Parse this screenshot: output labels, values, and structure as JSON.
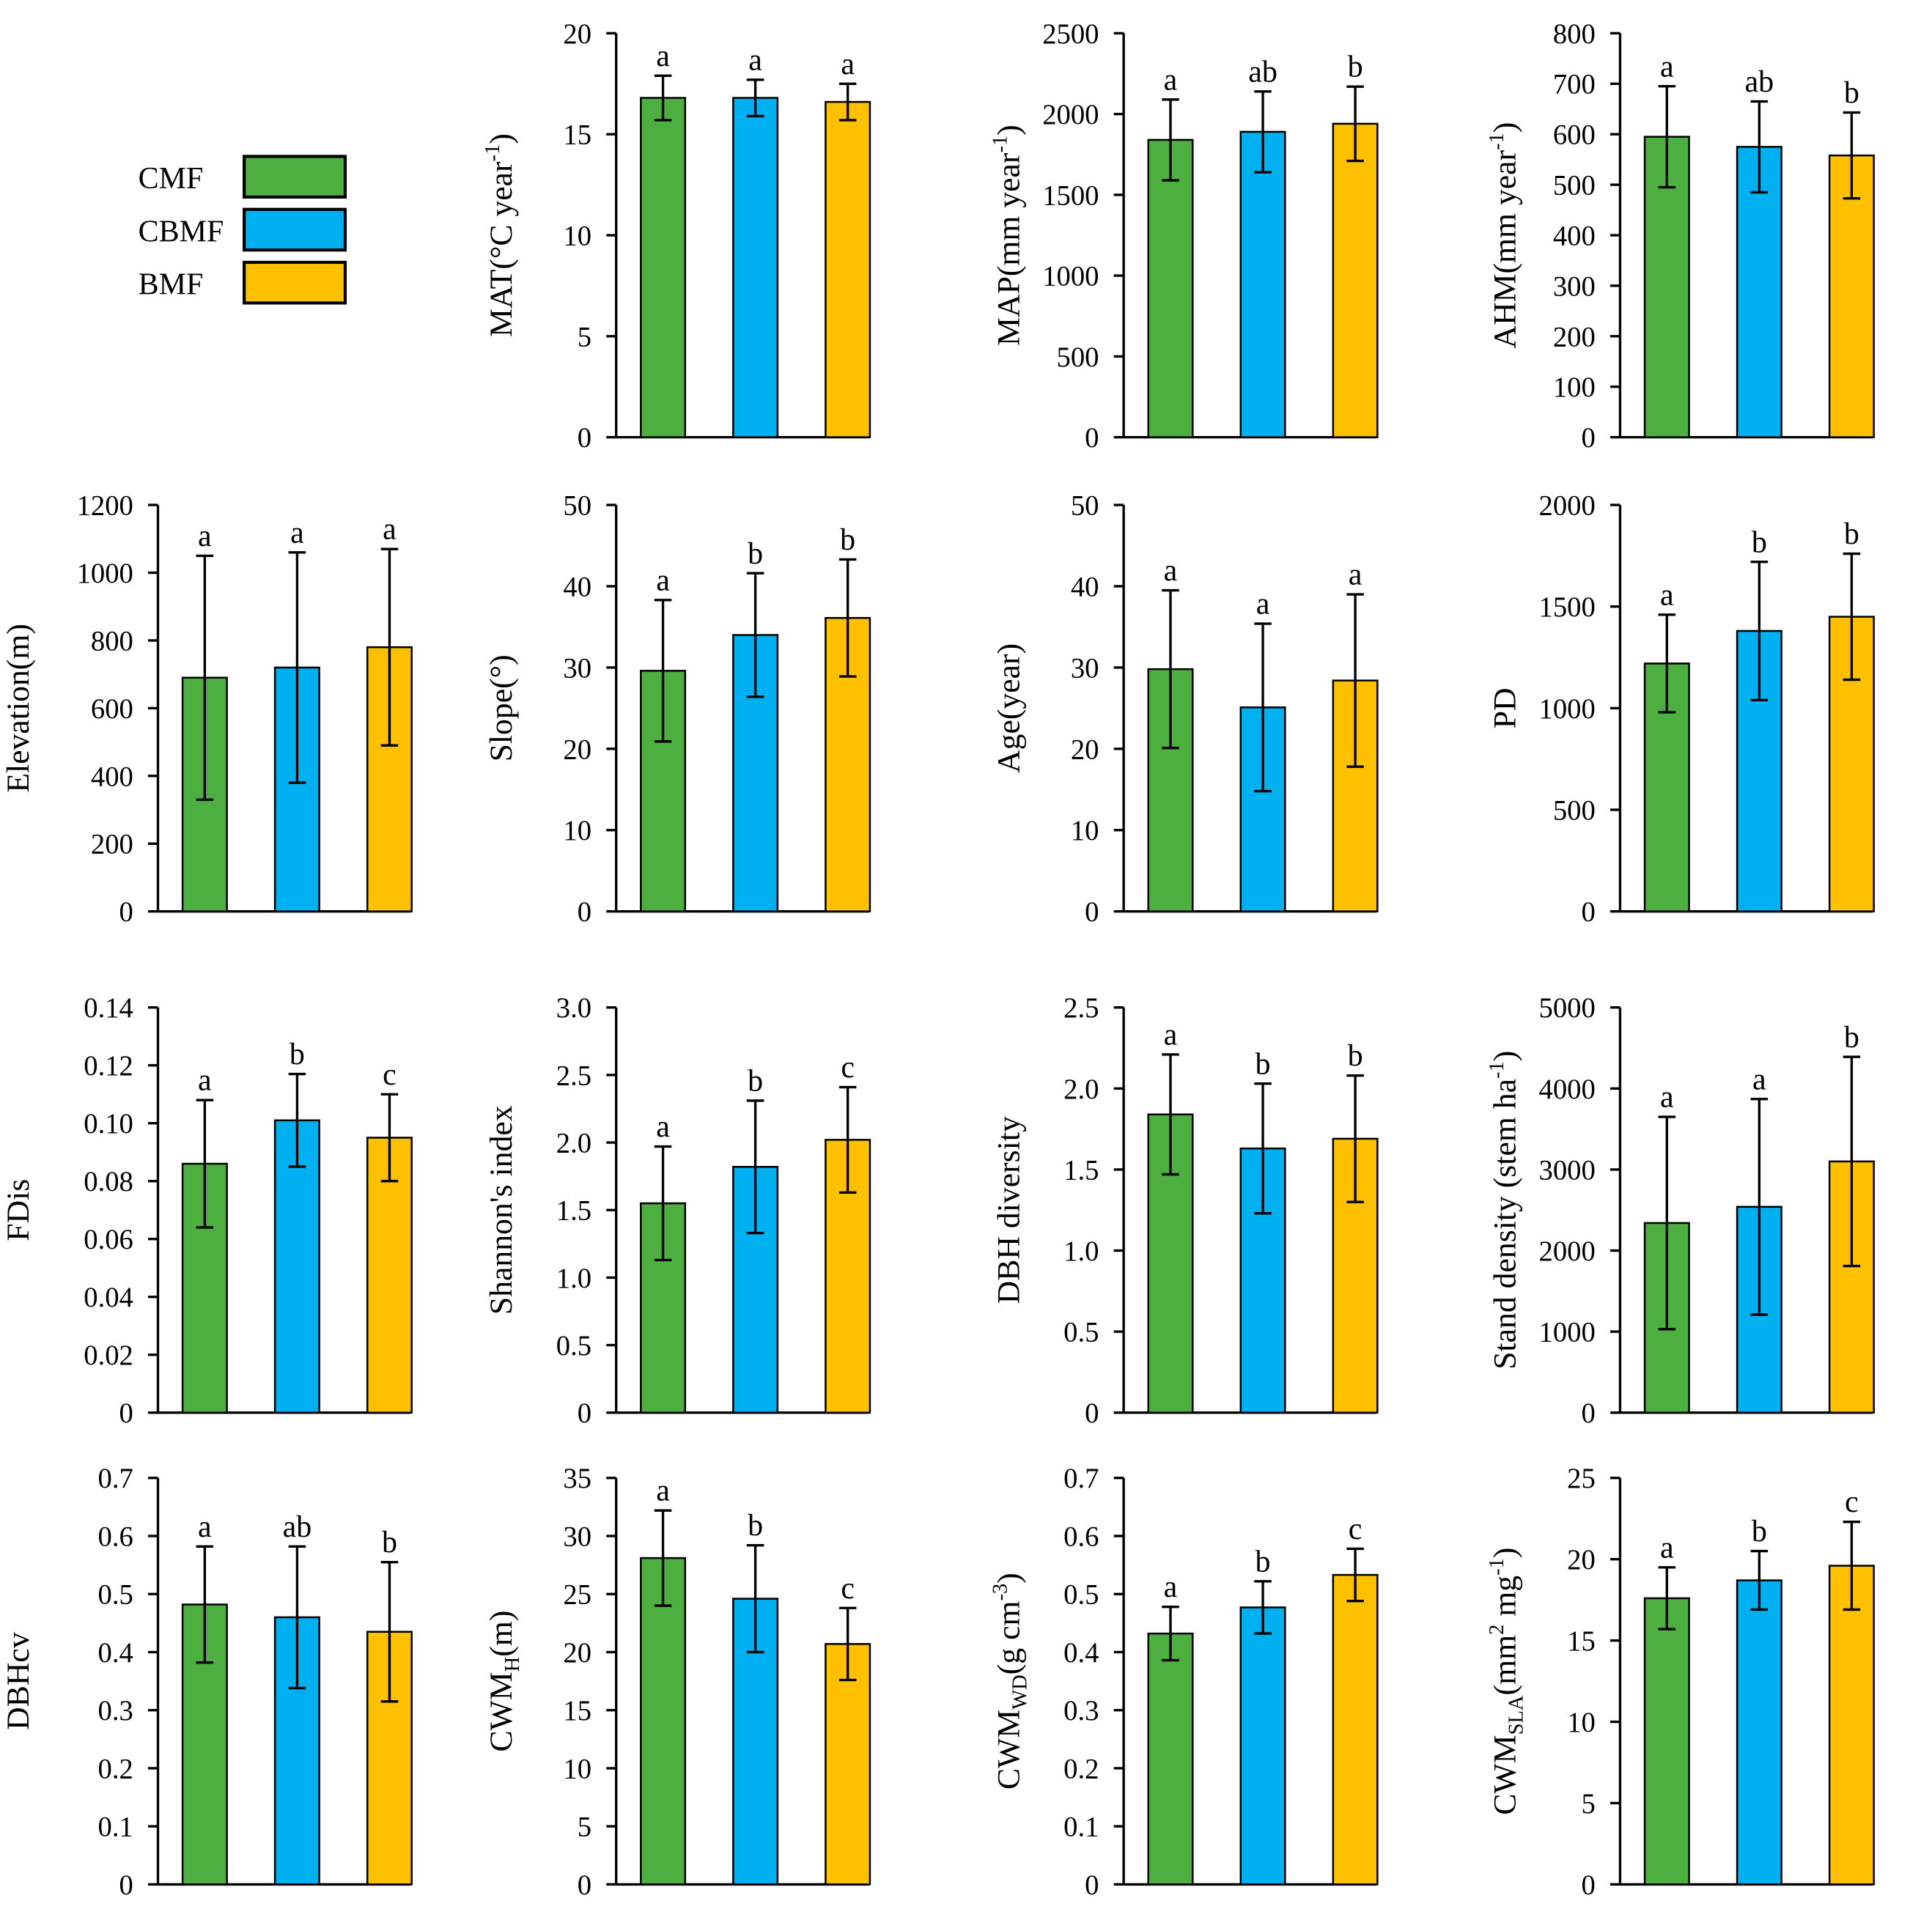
{
  "chart_data": {
    "type": "bar",
    "categories": [
      "CMF",
      "CBMF",
      "BMF"
    ],
    "colors": {
      "CMF": "#4DAF3F",
      "CBMF": "#00B0F0",
      "BMF": "#FFC000"
    },
    "legend": {
      "placement": "top-left",
      "entries": [
        "CMF",
        "CBMF",
        "BMF"
      ]
    },
    "panels": [
      {
        "ylabel": {
          "text": "MAT(°C year",
          "sup": "-1",
          "tail": ")"
        },
        "ylim": [
          0,
          20
        ],
        "step": 5,
        "values": [
          16.8,
          16.8,
          16.6
        ],
        "errors": [
          1.1,
          0.9,
          0.9
        ],
        "letters": [
          "a",
          "a",
          "a"
        ]
      },
      {
        "ylabel": {
          "text": "MAP(mm year",
          "sup": "-1",
          "tail": ")"
        },
        "ylim": [
          0,
          2500
        ],
        "step": 500,
        "values": [
          1840,
          1890,
          1940
        ],
        "errors": [
          250,
          250,
          230
        ],
        "letters": [
          "a",
          "ab",
          "b"
        ]
      },
      {
        "ylabel": {
          "text": "AHM(mm year",
          "sup": "-1",
          "tail": ")"
        },
        "ylim": [
          0,
          800
        ],
        "step": 100,
        "values": [
          595,
          575,
          558
        ],
        "errors": [
          100,
          90,
          85
        ],
        "letters": [
          "a",
          "ab",
          "b"
        ]
      },
      {
        "ylabel": {
          "text": "Elevation(m)"
        },
        "ylim": [
          0,
          1200
        ],
        "step": 200,
        "values": [
          690,
          720,
          780
        ],
        "errors": [
          360,
          340,
          290
        ],
        "letters": [
          "a",
          "a",
          "a"
        ]
      },
      {
        "ylabel": {
          "text": "Slope(°)"
        },
        "ylim": [
          0,
          50
        ],
        "step": 10,
        "values": [
          29.6,
          34.0,
          36.1
        ],
        "errors": [
          8.7,
          7.6,
          7.2
        ],
        "letters": [
          "a",
          "b",
          "b"
        ]
      },
      {
        "ylabel": {
          "text": "Age(year)"
        },
        "ylim": [
          0,
          50
        ],
        "step": 10,
        "values": [
          29.8,
          25.1,
          28.4
        ],
        "errors": [
          9.7,
          10.3,
          10.6
        ],
        "letters": [
          "a",
          "a",
          "a"
        ]
      },
      {
        "ylabel": {
          "text": "PD"
        },
        "ylim": [
          0,
          2000
        ],
        "step": 500,
        "values": [
          1220,
          1380,
          1450
        ],
        "errors": [
          240,
          340,
          310
        ],
        "letters": [
          "a",
          "b",
          "b"
        ]
      },
      {
        "ylabel": {
          "text": "FDis"
        },
        "ylim": [
          0,
          0.14
        ],
        "step": 0.02,
        "values": [
          0.086,
          0.101,
          0.095
        ],
        "errors": [
          0.022,
          0.016,
          0.015
        ],
        "letters": [
          "a",
          "b",
          "c"
        ]
      },
      {
        "ylabel": {
          "text": "Shannon's index"
        },
        "ylim": [
          0,
          3
        ],
        "step": 0.5,
        "values": [
          1.55,
          1.82,
          2.02
        ],
        "errors": [
          0.42,
          0.49,
          0.39
        ],
        "letters": [
          "a",
          "b",
          "c"
        ]
      },
      {
        "ylabel": {
          "text": "DBH diversity"
        },
        "ylim": [
          0,
          2.5
        ],
        "step": 0.5,
        "values": [
          1.84,
          1.63,
          1.69
        ],
        "errors": [
          0.37,
          0.4,
          0.39
        ],
        "letters": [
          "a",
          "b",
          "b"
        ]
      },
      {
        "ylabel": {
          "text": "Stand density (stem ha",
          "sup": "-1",
          "tail": ")"
        },
        "ylim": [
          0,
          5000
        ],
        "step": 1000,
        "values": [
          2340,
          2540,
          3100
        ],
        "errors": [
          1310,
          1330,
          1290
        ],
        "letters": [
          "a",
          "a",
          "b"
        ]
      },
      {
        "ylabel": {
          "text": "DBHcv"
        },
        "ylim": [
          0,
          0.7
        ],
        "step": 0.1,
        "values": [
          0.482,
          0.46,
          0.435
        ],
        "errors": [
          0.1,
          0.122,
          0.12
        ],
        "letters": [
          "a",
          "ab",
          "b"
        ]
      },
      {
        "ylabel": {
          "text": "CWM",
          "sub": "H",
          "tail": "(m)"
        },
        "ylim": [
          0,
          35
        ],
        "step": 5,
        "values": [
          28.1,
          24.6,
          20.7
        ],
        "errors": [
          4.1,
          4.6,
          3.1
        ],
        "letters": [
          "a",
          "b",
          "c"
        ]
      },
      {
        "ylabel": {
          "text": "CWM",
          "sub": "WD",
          "tail": "(g cm",
          "sup2": "-3",
          "tail2": ")"
        },
        "ylim": [
          0,
          0.7
        ],
        "step": 0.1,
        "values": [
          0.432,
          0.477,
          0.533
        ],
        "errors": [
          0.046,
          0.045,
          0.045
        ],
        "letters": [
          "a",
          "b",
          "c"
        ]
      },
      {
        "ylabel": {
          "text": "CWM",
          "sub": "SLA",
          "tail": "(mm",
          "sup2": "2",
          "tail2": " mg",
          "sup3": "-1",
          "tail3": ")"
        },
        "ylim": [
          0,
          25
        ],
        "step": 5,
        "values": [
          17.6,
          18.7,
          19.6
        ],
        "errors": [
          1.9,
          1.8,
          2.7
        ],
        "letters": [
          "a",
          "b",
          "c"
        ]
      }
    ]
  }
}
